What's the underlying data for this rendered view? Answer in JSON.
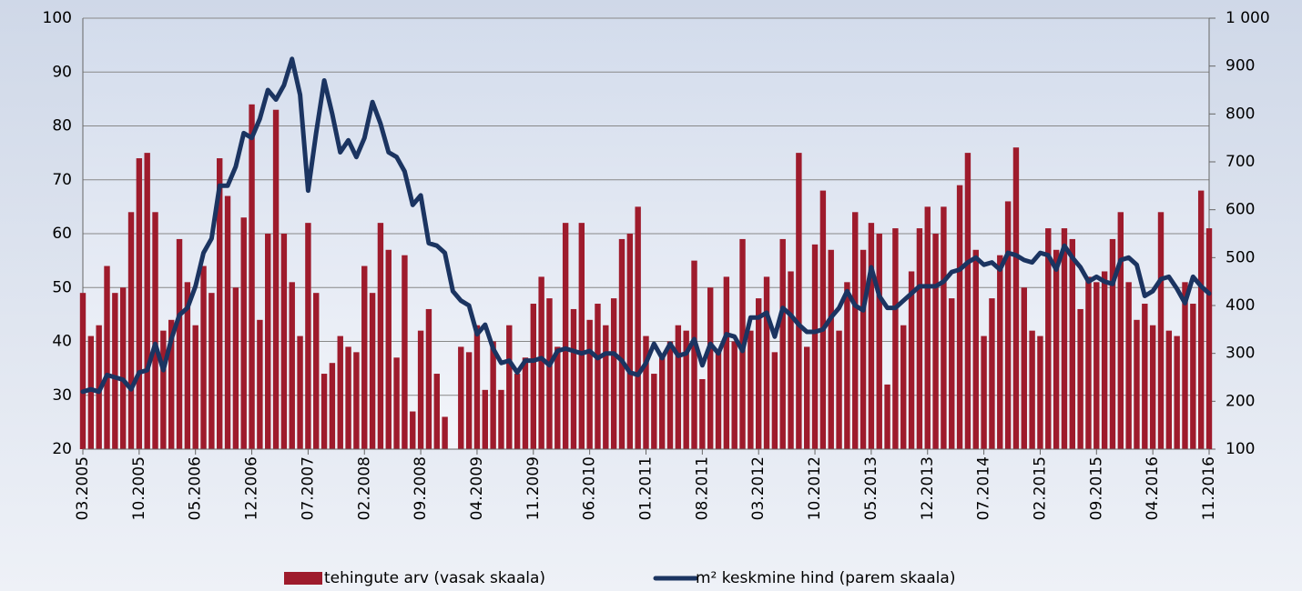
{
  "chart_data": {
    "type": "bar",
    "categories": [
      "03.2005",
      null,
      null,
      null,
      null,
      null,
      null,
      "10.2005",
      null,
      null,
      null,
      null,
      null,
      null,
      "05.2006",
      null,
      null,
      null,
      null,
      null,
      null,
      "12.2006",
      null,
      null,
      null,
      null,
      null,
      null,
      "07.2007",
      null,
      null,
      null,
      null,
      null,
      null,
      "02.2008",
      null,
      null,
      null,
      null,
      null,
      null,
      "09.2008",
      null,
      null,
      null,
      null,
      null,
      null,
      "04.2009",
      null,
      null,
      null,
      null,
      null,
      null,
      "11.2009",
      null,
      null,
      null,
      null,
      null,
      null,
      "06.2010",
      null,
      null,
      null,
      null,
      null,
      null,
      "01.2011",
      null,
      null,
      null,
      null,
      null,
      null,
      "08.2011",
      null,
      null,
      null,
      null,
      null,
      null,
      "03.2012",
      null,
      null,
      null,
      null,
      null,
      null,
      "10.2012",
      null,
      null,
      null,
      null,
      null,
      null,
      "05.2013",
      null,
      null,
      null,
      null,
      null,
      null,
      "12.2013",
      null,
      null,
      null,
      null,
      null,
      null,
      "07.2014",
      null,
      null,
      null,
      null,
      null,
      null,
      "02.2015",
      null,
      null,
      null,
      null,
      null,
      null,
      "09.2015",
      null,
      null,
      null,
      null,
      null,
      null,
      "04.2016",
      null,
      null,
      null,
      null,
      null,
      null,
      "11.2016"
    ],
    "series": [
      {
        "name": "tehingute arv (vasak skaala)",
        "type": "bar",
        "axis": "y",
        "color": "#9e1b2c",
        "values": [
          49,
          41,
          43,
          54,
          49,
          50,
          64,
          74,
          75,
          64,
          42,
          44,
          59,
          51,
          43,
          54,
          49,
          74,
          67,
          50,
          63,
          84,
          44,
          60,
          83,
          60,
          51,
          41,
          62,
          49,
          34,
          36,
          41,
          39,
          38,
          54,
          49,
          62,
          57,
          37,
          56,
          27,
          42,
          46,
          34,
          26,
          null,
          39,
          38,
          43,
          31,
          40,
          31,
          43,
          34,
          37,
          47,
          52,
          48,
          39,
          62,
          46,
          62,
          44,
          47,
          43,
          48,
          59,
          60,
          65,
          41,
          34,
          37,
          40,
          43,
          42,
          55,
          33,
          50,
          38,
          52,
          40,
          59,
          42,
          48,
          52,
          38,
          59,
          53,
          75,
          39,
          58,
          68,
          57,
          42,
          51,
          64,
          57,
          62,
          60,
          32,
          61,
          43,
          53,
          61,
          65,
          60,
          65,
          48,
          69,
          75,
          57,
          41,
          48,
          56,
          66,
          76,
          50,
          42,
          41,
          61,
          57,
          61,
          59,
          46,
          52,
          51,
          53,
          59,
          64,
          51,
          44,
          47,
          43,
          64,
          42,
          41,
          51,
          47,
          68,
          61
        ]
      },
      {
        "name": "m² keskmine hind (parem skaala)",
        "type": "line",
        "axis": "y2",
        "color": "#1b3461",
        "values": [
          220,
          225,
          220,
          255,
          250,
          245,
          225,
          260,
          265,
          320,
          265,
          330,
          380,
          395,
          440,
          510,
          540,
          650,
          650,
          690,
          760,
          750,
          790,
          850,
          830,
          860,
          915,
          840,
          640,
          760,
          870,
          800,
          720,
          745,
          710,
          750,
          825,
          780,
          720,
          710,
          680,
          610,
          630,
          530,
          525,
          510,
          430,
          410,
          400,
          340,
          360,
          310,
          280,
          285,
          260,
          285,
          285,
          290,
          275,
          305,
          310,
          305,
          300,
          305,
          290,
          300,
          300,
          285,
          260,
          255,
          280,
          320,
          290,
          320,
          295,
          300,
          330,
          275,
          320,
          300,
          340,
          335,
          305,
          375,
          375,
          385,
          335,
          395,
          380,
          360,
          345,
          345,
          350,
          375,
          395,
          430,
          400,
          390,
          480,
          420,
          395,
          395,
          410,
          425,
          440,
          440,
          440,
          450,
          470,
          475,
          490,
          500,
          485,
          490,
          475,
          510,
          505,
          495,
          490,
          510,
          505,
          475,
          525,
          500,
          480,
          450,
          460,
          450,
          445,
          495,
          500,
          485,
          420,
          430,
          455,
          460,
          435,
          405,
          460,
          440,
          425
        ]
      }
    ],
    "ylim": [
      20,
      100
    ],
    "yticks": [
      20,
      30,
      40,
      50,
      60,
      70,
      80,
      90,
      100
    ],
    "y2lim": [
      100,
      1000
    ],
    "y2ticks": [
      100,
      200,
      300,
      400,
      500,
      600,
      700,
      800,
      900,
      {
        "value": 1000,
        "label": "1 000"
      }
    ],
    "grid": true,
    "legend": "bottom"
  }
}
